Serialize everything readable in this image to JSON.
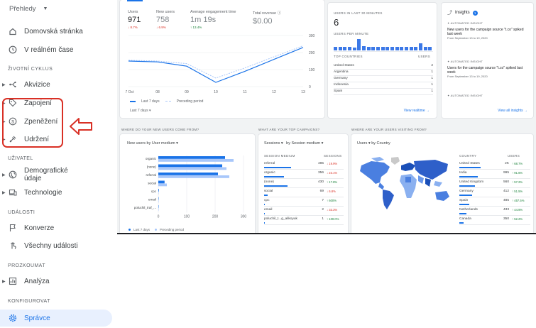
{
  "sidebar": {
    "header": "Přehledy",
    "items": [
      {
        "name": "home",
        "label": "Domovská stránka"
      },
      {
        "name": "realtime",
        "label": "V reálném čase"
      },
      {
        "name": "acquisition",
        "label": "Akvizice"
      },
      {
        "name": "engagement",
        "label": "Zapojení"
      },
      {
        "name": "monetization",
        "label": "Zpeněžení"
      },
      {
        "name": "retention",
        "label": "Udržení"
      },
      {
        "name": "demographics",
        "label": "Demografické údaje"
      },
      {
        "name": "tech",
        "label": "Technologie"
      },
      {
        "name": "conversions",
        "label": "Konverze"
      },
      {
        "name": "events",
        "label": "Všechny události"
      },
      {
        "name": "analysis",
        "label": "Analýza"
      },
      {
        "name": "admin",
        "label": "Správce"
      }
    ],
    "sections": {
      "lifecycle": "ŽIVOTNÍ CYKLUS",
      "user": "UŽIVATEL",
      "events": "UDÁLOSTI",
      "explore": "PROZKOUMAT",
      "configure": "KONFIGUROVAT"
    },
    "highlight_color": "#d93025",
    "active_color": "#1a73e8"
  },
  "overview": {
    "metrics": [
      {
        "name": "Users",
        "value": "971",
        "delta": "↓ 8.7%"
      },
      {
        "name": "New users",
        "value": "758",
        "delta": "↓ 6.9%"
      },
      {
        "name": "Average engagement time",
        "value": "1m 19s",
        "delta": "↑ 13.4%"
      },
      {
        "name": "Total revenue",
        "value": "$0.00",
        "delta": ""
      }
    ],
    "legend_current": "Last 7 days",
    "legend_previous": "Preceding period",
    "date_range": "Last 7 days ▾"
  },
  "realtime": {
    "title": "USERS IN LAST 30 MINUTES",
    "value": "6",
    "per_minute": "USERS PER MINUTE",
    "col_country": "TOP COUNTRIES",
    "col_users": "USERS",
    "rows": [
      {
        "country": "United States",
        "users": "2"
      },
      {
        "country": "Argentina",
        "users": "1"
      },
      {
        "country": "Germany",
        "users": "1"
      },
      {
        "country": "Indonesia",
        "users": "1"
      },
      {
        "country": "Spain",
        "users": "1"
      }
    ],
    "bars": [
      0.3,
      0.3,
      0.3,
      0.3,
      0.2,
      0.9,
      0.35,
      0.3,
      0.3,
      0.3,
      0.3,
      0.3,
      0.3,
      0.3,
      0.3,
      0.3,
      0.3,
      0.3,
      0.55,
      0.3,
      0.3
    ],
    "link": "View realtime →"
  },
  "insights": {
    "title": "Insights",
    "badge": "1",
    "items": [
      {
        "tag": "AUTOMATED INSIGHT",
        "text": "New users for the campaign source \"t.co\" spiked last week",
        "date": "From September 13 to 19, 2020"
      },
      {
        "tag": "AUTOMATED INSIGHT",
        "text": "Users for the campaign source \"t.co\" spiked last week",
        "date": "From September 13 to 19, 2020"
      },
      {
        "tag": "AUTOMATED INSIGHT",
        "text": "",
        "date": ""
      }
    ],
    "link": "View all insights →"
  },
  "sections": {
    "new_users": "WHERE DO YOUR NEW USERS COME FROM?",
    "campaigns": "WHAT ARE YOUR TOP CAMPAIGNS?",
    "visitors": "WHERE ARE YOUR USERS VISITING FROM?"
  },
  "new_users_card": {
    "title": "New users by User medium ▾",
    "legend_current": "Last 7 days",
    "legend_previous": "Preceding period"
  },
  "campaigns": {
    "dropdown1": "Sessions ▾",
    "dropdown2": "by Session medium ▾",
    "col_medium": "SESSION MEDIUM",
    "col_sessions": "SESSIONS",
    "rows": [
      {
        "medium": "referral",
        "sessions": "485",
        "delta": "↓ 19.9%",
        "dir": "neg",
        "fill": 1.0
      },
      {
        "medium": "organic",
        "sessions": "356",
        "delta": "↓ 23.1%",
        "dir": "neg",
        "fill": 0.73
      },
      {
        "medium": "(none)",
        "sessions": "430",
        "delta": "↑ 17.8%",
        "dir": "pos",
        "fill": 0.88
      },
      {
        "medium": "social",
        "sessions": "69",
        "delta": "↓ 6.8%",
        "dir": "neg",
        "fill": 0.14
      },
      {
        "medium": "cpc",
        "sessions": "7",
        "delta": "↑ 600%",
        "dir": "pos",
        "fill": 0.02
      },
      {
        "medium": "email",
        "sessions": "2",
        "delta": "↓ 33.3%",
        "dir": "neg",
        "fill": 0.01
      },
      {
        "medium": "poluchil_t...g_alikoyuk",
        "sessions": "1",
        "delta": "↑ 100.0%",
        "dir": "pos",
        "fill": 0.01
      }
    ]
  },
  "countries": {
    "dropdown": "Users ▾",
    "subtitle": "by Country",
    "col_country": "COUNTRY",
    "col_users": "USERS",
    "rows": [
      {
        "country": "United States",
        "users": "2K",
        "delta": "↑ 68.7%",
        "dir": "pos"
      },
      {
        "country": "India",
        "users": "995",
        "delta": "↑ 91.6%",
        "dir": "pos"
      },
      {
        "country": "United Kingdom",
        "users": "560",
        "delta": "↑ 57.2%",
        "dir": "pos"
      },
      {
        "country": "Germany",
        "users": "412",
        "delta": "↑ 51.5%",
        "dir": "pos"
      },
      {
        "country": "Spain",
        "users": "485",
        "delta": "↑ 457.5%",
        "dir": "pos"
      },
      {
        "country": "Netherlands",
        "users": "433",
        "delta": "↑ 44.9%",
        "dir": "pos"
      },
      {
        "country": "Canada",
        "users": "350",
        "delta": "↑ 52.2%",
        "dir": "pos"
      }
    ]
  },
  "chart_data": [
    {
      "type": "line",
      "x": [
        "07 Oct",
        "08",
        "09",
        "10",
        "11",
        "12",
        "13"
      ],
      "series": [
        {
          "name": "Last 7 days",
          "values": [
            150,
            145,
            120,
            25,
            90,
            160,
            230
          ]
        },
        {
          "name": "Preceding period",
          "values": [
            155,
            150,
            135,
            50,
            110,
            175,
            240
          ]
        }
      ],
      "ylim": [
        0,
        300
      ],
      "yticks": [
        "300",
        "200",
        "100",
        "0"
      ],
      "xlabel": "",
      "ylabel": ""
    },
    {
      "type": "bar",
      "orientation": "horizontal",
      "categories": [
        "organic",
        "(none)",
        "referral",
        "social",
        "cpc",
        "email",
        "poluchil_traf_..."
      ],
      "series": [
        {
          "name": "Last 7 days",
          "values": [
            235,
            225,
            210,
            22,
            2,
            1,
            1
          ]
        },
        {
          "name": "Preceding period",
          "values": [
            265,
            240,
            250,
            30,
            1,
            1,
            0
          ]
        }
      ],
      "xticks": [
        "0",
        "100",
        "200",
        "300"
      ],
      "xlim": [
        0,
        300
      ]
    }
  ],
  "colors": {
    "primary": "#1a73e8",
    "secondary": "#a8c7fa",
    "background": "#f1f3f4"
  }
}
